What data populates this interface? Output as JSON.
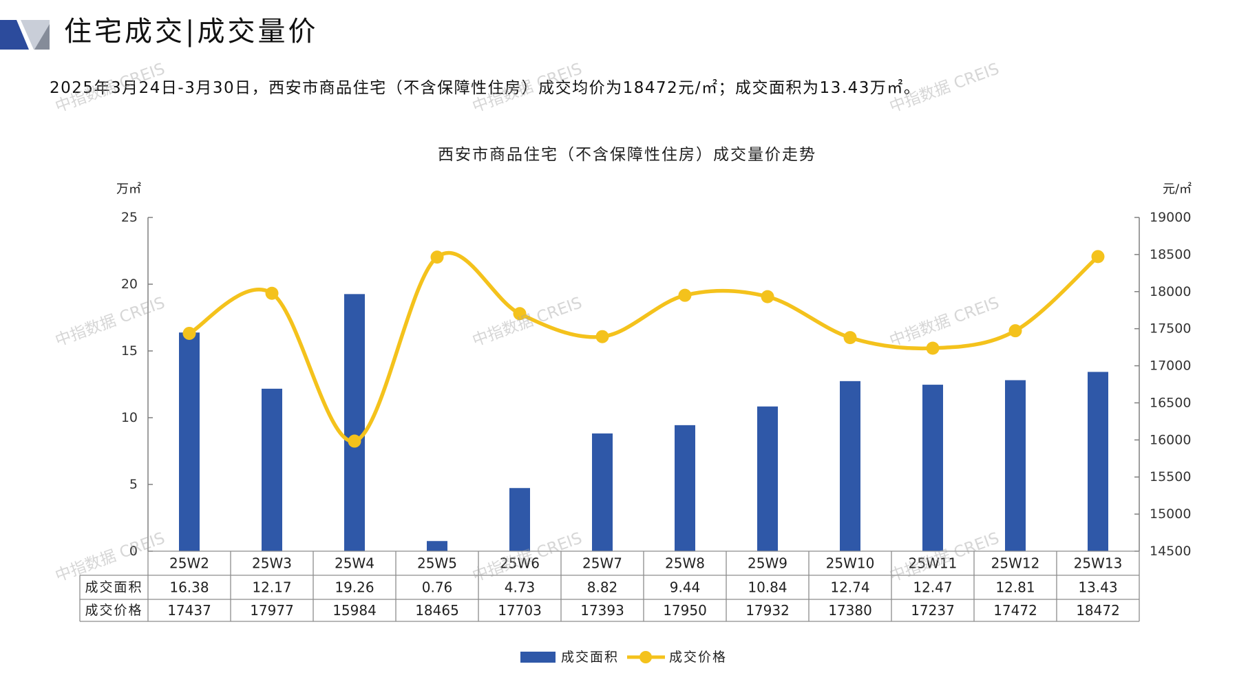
{
  "header": {
    "title": "住宅成交|成交量价",
    "summary": "2025年3月24日-3月30日，西安市商品住宅（不含保障性住房）成交均价为18472元/㎡；成交面积为13.43万㎡。"
  },
  "logo": {
    "icon": "brand-logo",
    "colors": [
      "#2C4B9C",
      "#C9CED8",
      "#858C99"
    ]
  },
  "watermark": "中指数据 CREIS",
  "colors": {
    "bar": "#2F58A8",
    "line": "#F4C21C"
  },
  "chart_data": {
    "type": "bar",
    "title": "西安市商品住宅（不含保障性住房）成交量价走势",
    "categories": [
      "25W2",
      "25W3",
      "25W4",
      "25W5",
      "25W6",
      "25W7",
      "25W8",
      "25W9",
      "25W10",
      "25W11",
      "25W12",
      "25W13"
    ],
    "y_left": {
      "unit": "万㎡",
      "range": [
        0,
        25
      ],
      "ticks": [
        0,
        5,
        10,
        15,
        20,
        25
      ]
    },
    "y_right": {
      "unit": "元/㎡",
      "range": [
        14500,
        19000
      ],
      "ticks": [
        14500,
        15000,
        15500,
        16000,
        16500,
        17000,
        17500,
        18000,
        18500,
        19000
      ]
    },
    "series": [
      {
        "name": "成交面积",
        "type": "bar",
        "axis": "left",
        "values": [
          16.38,
          12.17,
          19.26,
          0.76,
          4.73,
          8.82,
          9.44,
          10.84,
          12.74,
          12.47,
          12.81,
          13.43
        ]
      },
      {
        "name": "成交价格",
        "type": "line",
        "axis": "right",
        "smooth": true,
        "marker": "circle",
        "values": [
          17437,
          17977,
          15984,
          18465,
          17703,
          17393,
          17950,
          17932,
          17380,
          17237,
          17472,
          18472
        ]
      }
    ],
    "legend": "bottom",
    "data_table": true,
    "grid": false
  }
}
